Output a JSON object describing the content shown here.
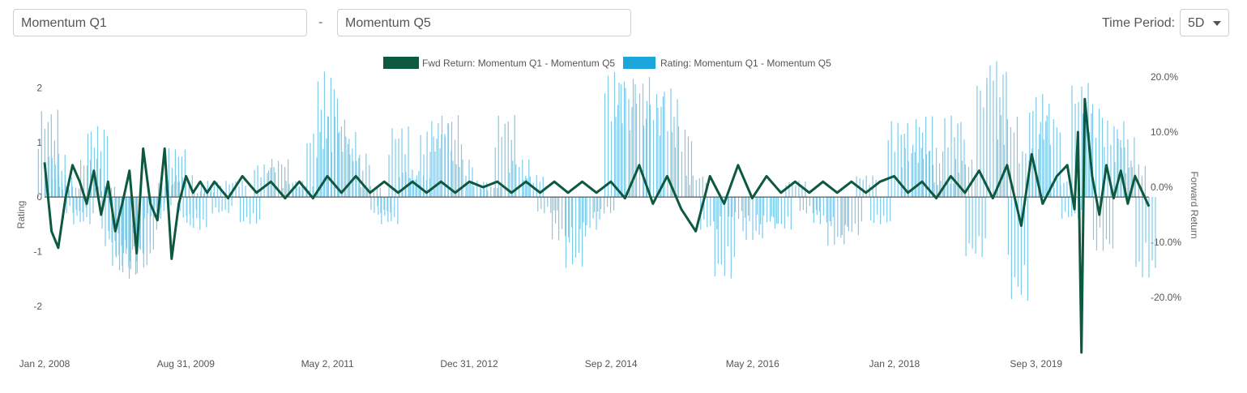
{
  "controls": {
    "series_a": "Momentum Q1",
    "separator": "-",
    "series_b": "Momentum Q5",
    "period_label": "Time Period:",
    "period_value": "5D"
  },
  "colors": {
    "return": "#0d5940",
    "rating": "#1ca6dc",
    "rating_bar": "#7fcbea"
  },
  "chart_data": {
    "type": "bar",
    "legend": [
      "Fwd Return: Momentum Q1 - Momentum Q5",
      "Rating: Momentum Q1 - Momentum Q5"
    ],
    "legend_position": "top-center",
    "ylabel_left": "Rating",
    "ylabel_right": "Forward Return",
    "ylim_left": [
      -2.85,
      2.2
    ],
    "ylim_right": [
      -30,
      20
    ],
    "yticks_left": [
      "2",
      "1",
      "0",
      "-1",
      "-2"
    ],
    "yticks_right": [
      "20.0%",
      "10.0%",
      "0.0%",
      "-10.0%",
      "-20.0%"
    ],
    "xlim": [
      "2008-01-02",
      "2020-12-31"
    ],
    "xticks": [
      "Jan 2, 2008",
      "Aug 31, 2009",
      "May 2, 2011",
      "Dec 31, 2012",
      "Sep 2, 2014",
      "May 2, 2016",
      "Jan 2, 2018",
      "Sep 3, 2019"
    ],
    "grid": false,
    "series": [
      {
        "name": "Fwd Return: Momentum Q1 - Momentum Q5",
        "kind": "line",
        "axis": "right",
        "points": [
          [
            "2008-01-02",
            4.5
          ],
          [
            "2008-02-01",
            -8
          ],
          [
            "2008-03-01",
            -11
          ],
          [
            "2008-04-01",
            -2
          ],
          [
            "2008-05-01",
            4
          ],
          [
            "2008-06-01",
            1
          ],
          [
            "2008-07-01",
            -3
          ],
          [
            "2008-08-01",
            3
          ],
          [
            "2008-09-01",
            -5
          ],
          [
            "2008-10-01",
            1
          ],
          [
            "2008-11-01",
            -8
          ],
          [
            "2008-12-01",
            -3
          ],
          [
            "2009-01-01",
            3
          ],
          [
            "2009-02-01",
            -12
          ],
          [
            "2009-03-01",
            7
          ],
          [
            "2009-04-01",
            -3
          ],
          [
            "2009-05-01",
            -6
          ],
          [
            "2009-06-01",
            7
          ],
          [
            "2009-07-01",
            -13
          ],
          [
            "2009-08-01",
            -3
          ],
          [
            "2009-09-01",
            2
          ],
          [
            "2009-10-01",
            -1
          ],
          [
            "2009-11-01",
            1
          ],
          [
            "2009-12-01",
            -1
          ],
          [
            "2010-01-01",
            1
          ],
          [
            "2010-03-01",
            -2
          ],
          [
            "2010-05-01",
            2
          ],
          [
            "2010-07-01",
            -1
          ],
          [
            "2010-09-01",
            1
          ],
          [
            "2010-11-01",
            -2
          ],
          [
            "2011-01-01",
            1
          ],
          [
            "2011-03-01",
            -2
          ],
          [
            "2011-05-01",
            2
          ],
          [
            "2011-07-01",
            -1
          ],
          [
            "2011-09-01",
            2
          ],
          [
            "2011-11-01",
            -1
          ],
          [
            "2012-01-01",
            1
          ],
          [
            "2012-03-01",
            -1
          ],
          [
            "2012-05-01",
            1
          ],
          [
            "2012-07-01",
            -1
          ],
          [
            "2012-09-01",
            1
          ],
          [
            "2012-11-01",
            -1
          ],
          [
            "2013-01-01",
            1
          ],
          [
            "2013-03-01",
            0
          ],
          [
            "2013-05-01",
            1
          ],
          [
            "2013-07-01",
            -1
          ],
          [
            "2013-09-01",
            1
          ],
          [
            "2013-11-01",
            -1
          ],
          [
            "2014-01-01",
            1
          ],
          [
            "2014-03-01",
            -1
          ],
          [
            "2014-05-01",
            1
          ],
          [
            "2014-07-01",
            -1
          ],
          [
            "2014-09-01",
            1
          ],
          [
            "2014-11-01",
            -2
          ],
          [
            "2015-01-01",
            4
          ],
          [
            "2015-03-01",
            -3
          ],
          [
            "2015-05-01",
            2
          ],
          [
            "2015-07-01",
            -4
          ],
          [
            "2015-09-01",
            -8
          ],
          [
            "2015-11-01",
            2
          ],
          [
            "2016-01-01",
            -3
          ],
          [
            "2016-03-01",
            4
          ],
          [
            "2016-05-01",
            -2
          ],
          [
            "2016-07-01",
            2
          ],
          [
            "2016-09-01",
            -1
          ],
          [
            "2016-11-01",
            1
          ],
          [
            "2017-01-01",
            -1
          ],
          [
            "2017-03-01",
            1
          ],
          [
            "2017-05-01",
            -1
          ],
          [
            "2017-07-01",
            1
          ],
          [
            "2017-09-01",
            -1
          ],
          [
            "2017-11-01",
            1
          ],
          [
            "2018-01-01",
            2
          ],
          [
            "2018-03-01",
            -1
          ],
          [
            "2018-05-01",
            1
          ],
          [
            "2018-07-01",
            -2
          ],
          [
            "2018-09-01",
            2
          ],
          [
            "2018-11-01",
            -1
          ],
          [
            "2019-01-01",
            3
          ],
          [
            "2019-03-01",
            -2
          ],
          [
            "2019-05-01",
            4
          ],
          [
            "2019-07-01",
            -7
          ],
          [
            "2019-08-15",
            6
          ],
          [
            "2019-10-01",
            -3
          ],
          [
            "2019-12-01",
            2
          ],
          [
            "2020-01-15",
            4
          ],
          [
            "2020-02-15",
            -4
          ],
          [
            "2020-03-01",
            10
          ],
          [
            "2020-03-16",
            -30
          ],
          [
            "2020-03-30",
            16
          ],
          [
            "2020-05-01",
            2
          ],
          [
            "2020-06-01",
            -5
          ],
          [
            "2020-07-01",
            4
          ],
          [
            "2020-08-01",
            -2
          ],
          [
            "2020-09-01",
            3
          ],
          [
            "2020-10-01",
            -3
          ],
          [
            "2020-11-01",
            2
          ],
          [
            "2020-12-31",
            -3.5
          ]
        ]
      },
      {
        "name": "Rating: Momentum Q1 - Momentum Q5",
        "kind": "bar",
        "axis": "left",
        "points": [
          [
            "2008-01-15",
            1.6
          ],
          [
            "2008-02-15",
            0.8
          ],
          [
            "2008-03-15",
            0.4
          ],
          [
            "2008-04-15",
            0.2
          ],
          [
            "2008-05-15",
            -0.3
          ],
          [
            "2008-06-15",
            -0.5
          ],
          [
            "2008-07-15",
            0.7
          ],
          [
            "2008-08-15",
            1.3
          ],
          [
            "2008-09-15",
            0.2
          ],
          [
            "2008-10-15",
            -0.9
          ],
          [
            "2008-11-15",
            -1.3
          ],
          [
            "2008-12-15",
            -1.5
          ],
          [
            "2009-01-15",
            -1.2
          ],
          [
            "2009-02-15",
            -1.4
          ],
          [
            "2009-03-15",
            -1.0
          ],
          [
            "2009-04-15",
            -0.4
          ],
          [
            "2009-05-15",
            -0.2
          ],
          [
            "2009-06-15",
            0.3
          ],
          [
            "2009-07-15",
            0.9
          ],
          [
            "2009-08-15",
            0.4
          ],
          [
            "2009-09-15",
            -0.4
          ],
          [
            "2009-10-15",
            -0.6
          ],
          [
            "2009-11-15",
            0.1
          ],
          [
            "2009-12-15",
            0.3
          ],
          [
            "2010-02-01",
            -0.3
          ],
          [
            "2010-04-01",
            0.3
          ],
          [
            "2010-06-01",
            -0.5
          ],
          [
            "2010-08-01",
            0.6
          ],
          [
            "2010-10-01",
            0.7
          ],
          [
            "2010-12-01",
            0.3
          ],
          [
            "2011-01-15",
            0.2
          ],
          [
            "2011-03-15",
            1.2
          ],
          [
            "2011-05-01",
            2.3
          ],
          [
            "2011-06-15",
            1.5
          ],
          [
            "2011-08-01",
            1.2
          ],
          [
            "2011-09-15",
            0.8
          ],
          [
            "2011-11-01",
            0.2
          ],
          [
            "2011-12-15",
            -0.3
          ],
          [
            "2012-01-15",
            -0.5
          ],
          [
            "2012-03-01",
            1.3
          ],
          [
            "2012-04-15",
            0.5
          ],
          [
            "2012-06-01",
            0.4
          ],
          [
            "2012-07-15",
            1.2
          ],
          [
            "2012-09-01",
            1.4
          ],
          [
            "2012-10-15",
            1.5
          ],
          [
            "2012-12-01",
            0.7
          ],
          [
            "2013-02-01",
            0.3
          ],
          [
            "2013-04-01",
            0.2
          ],
          [
            "2013-06-01",
            1.5
          ],
          [
            "2013-08-01",
            0.7
          ],
          [
            "2013-10-01",
            0.4
          ],
          [
            "2013-12-01",
            -0.3
          ],
          [
            "2014-02-01",
            -0.8
          ],
          [
            "2014-04-01",
            -1.3
          ],
          [
            "2014-06-01",
            -0.6
          ],
          [
            "2014-08-01",
            -0.3
          ],
          [
            "2014-09-15",
            2.3
          ],
          [
            "2014-11-01",
            2.1
          ],
          [
            "2015-01-01",
            2.2
          ],
          [
            "2015-03-01",
            1.9
          ],
          [
            "2015-05-01",
            2.0
          ],
          [
            "2015-07-01",
            1.3
          ],
          [
            "2015-09-01",
            0.4
          ],
          [
            "2015-11-01",
            -0.6
          ],
          [
            "2016-01-01",
            -1.5
          ],
          [
            "2016-03-01",
            -0.4
          ],
          [
            "2016-05-01",
            -0.8
          ],
          [
            "2016-07-01",
            -0.5
          ],
          [
            "2016-09-01",
            -0.6
          ],
          [
            "2016-11-01",
            0.3
          ],
          [
            "2017-01-01",
            -0.3
          ],
          [
            "2017-03-01",
            -0.5
          ],
          [
            "2017-05-01",
            -0.9
          ],
          [
            "2017-07-01",
            -0.7
          ],
          [
            "2017-09-01",
            0.4
          ],
          [
            "2017-11-01",
            -0.5
          ],
          [
            "2018-01-15",
            1.4
          ],
          [
            "2018-03-15",
            0.9
          ],
          [
            "2018-05-01",
            1.5
          ],
          [
            "2018-06-15",
            0.9
          ],
          [
            "2018-08-01",
            0.3
          ],
          [
            "2018-09-15",
            1.5
          ],
          [
            "2018-11-01",
            0.7
          ],
          [
            "2018-12-15",
            -1.1
          ],
          [
            "2019-02-01",
            2.2
          ],
          [
            "2019-03-15",
            2.5
          ],
          [
            "2019-05-01",
            1.5
          ],
          [
            "2019-06-15",
            -1.9
          ],
          [
            "2019-08-01",
            0.9
          ],
          [
            "2019-09-15",
            1.9
          ],
          [
            "2019-11-01",
            1.5
          ],
          [
            "2019-12-15",
            0.3
          ],
          [
            "2020-02-01",
            -0.4
          ],
          [
            "2020-03-15",
            2.1
          ],
          [
            "2020-05-01",
            1.7
          ],
          [
            "2020-06-15",
            -1.0
          ],
          [
            "2020-08-01",
            1.4
          ],
          [
            "2020-09-15",
            1.1
          ],
          [
            "2020-11-01",
            0.6
          ],
          [
            "2020-12-15",
            -1.5
          ]
        ]
      }
    ]
  }
}
